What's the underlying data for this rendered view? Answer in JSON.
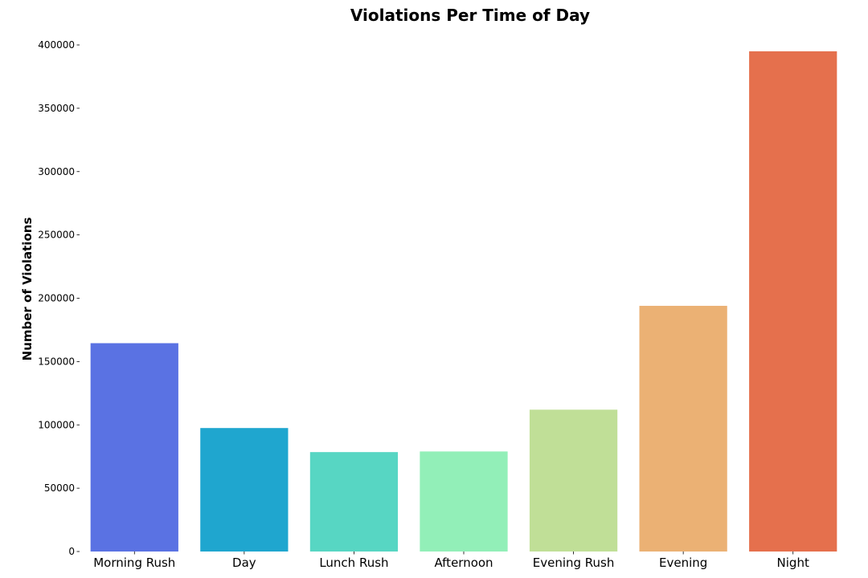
{
  "chart_data": {
    "type": "bar",
    "title": "Violations Per Time of Day",
    "xlabel": "",
    "ylabel": "Number of Violations",
    "categories": [
      "Morning Rush",
      "Day",
      "Lunch Rush",
      "Afternoon",
      "Evening Rush",
      "Evening",
      "Night"
    ],
    "values": [
      164500,
      97500,
      78500,
      79000,
      112000,
      194000,
      395000
    ],
    "colors": [
      "#5a72e3",
      "#1fa6cf",
      "#57d6c3",
      "#92efb8",
      "#c0df97",
      "#ebb174",
      "#e5704d"
    ],
    "ylim": [
      0,
      400000
    ],
    "yticks": [
      0,
      50000,
      100000,
      150000,
      200000,
      250000,
      300000,
      350000,
      400000
    ],
    "grid": false,
    "legend": "none"
  }
}
